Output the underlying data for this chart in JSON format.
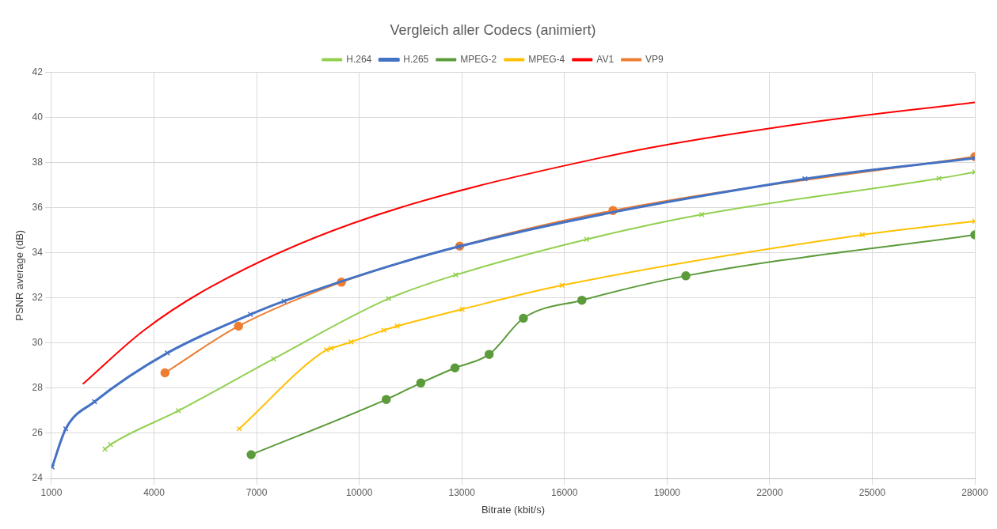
{
  "chart_data": {
    "type": "line",
    "title": "Vergleich aller Codecs (animiert)",
    "xlabel": "Bitrate (kbit/s)",
    "ylabel": "PSNR average (dB)",
    "xlim": [
      1000,
      28000
    ],
    "xticks": [
      1000,
      4000,
      7000,
      10000,
      13000,
      16000,
      19000,
      22000,
      25000,
      28000
    ],
    "ylim": [
      24,
      42
    ],
    "yticks": [
      24,
      26,
      28,
      30,
      32,
      34,
      36,
      38,
      40,
      42
    ],
    "grid": true,
    "legend": "top",
    "series": [
      {
        "name": "H.264",
        "color": "#92d050",
        "marker": "cross",
        "x": [
          2565,
          2730,
          4714,
          7494,
          10858,
          12820,
          16650,
          20016,
          26950,
          28000
        ],
        "values": [
          25.3,
          25.5,
          27.0,
          29.3,
          31.97,
          33.02,
          34.6,
          35.7,
          37.3,
          37.58
        ]
      },
      {
        "name": "H.265",
        "color": "#4472c4",
        "marker": "cross",
        "x": [
          1020,
          1420,
          2260,
          4390,
          6820,
          7800,
          12910,
          23030,
          28000
        ],
        "values": [
          24.5,
          26.2,
          27.4,
          29.56,
          31.27,
          31.86,
          34.28,
          37.28,
          38.2
        ]
      },
      {
        "name": "MPEG-2",
        "color": "#5b9b3a",
        "marker": "circle",
        "x": [
          6840,
          10790,
          11800,
          12800,
          13800,
          14800,
          16510,
          19550,
          28000
        ],
        "values": [
          25.05,
          27.5,
          28.23,
          28.9,
          29.5,
          31.1,
          31.9,
          32.98,
          34.8
        ]
      },
      {
        "name": "MPEG-4",
        "color": "#ffc000",
        "marker": "cross",
        "x": [
          6490,
          9040,
          9180,
          9760,
          10720,
          11110,
          13010,
          15930,
          24710,
          28000
        ],
        "values": [
          26.2,
          29.7,
          29.77,
          30.05,
          30.57,
          30.75,
          31.5,
          32.56,
          34.8,
          35.4
        ]
      },
      {
        "name": "AV1",
        "color": "#ff0000",
        "marker": "none",
        "x": [
          1930,
          3690,
          5740,
          9790,
          17100,
          22960,
          28000
        ],
        "values": [
          28.2,
          30.55,
          32.56,
          35.3,
          38.23,
          39.73,
          40.67
        ]
      },
      {
        "name": "VP9",
        "color": "#ed7d31",
        "marker": "circle",
        "x": [
          4320,
          6470,
          9480,
          12940,
          17420,
          28000
        ],
        "values": [
          28.68,
          30.75,
          32.7,
          34.3,
          35.88,
          38.27
        ]
      }
    ]
  }
}
